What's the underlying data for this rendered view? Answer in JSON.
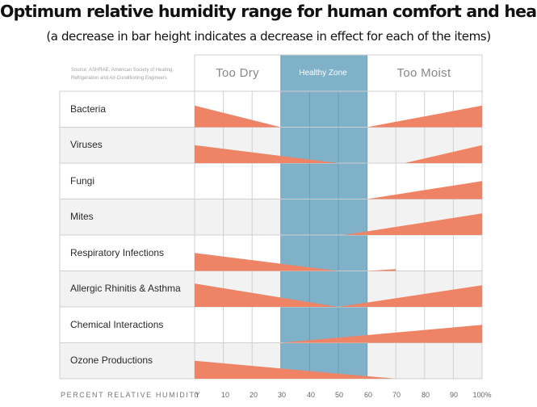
{
  "header": {
    "title": "Optimum relative humidity range for human comfort and health",
    "subtitle": "(a decrease in bar height indicates a decrease in effect for each of the items)"
  },
  "source": "Source: ASHRAE, American Society of Heating, Refrigeration and Air-Conditioning Engineers",
  "colors": {
    "bar": "#ee8366",
    "healthy_zone": "#7fb1c8",
    "row_alt": "#f2f2f2",
    "grid": "#cfcfcf"
  },
  "chart_data": {
    "type": "area",
    "xlabel": "PERCENT RELATIVE HUMIDITY",
    "xlim": [
      0,
      100
    ],
    "x_ticks": [
      "0",
      "10",
      "20",
      "30",
      "40",
      "50",
      "60",
      "70",
      "80",
      "90",
      "100%"
    ],
    "zones": [
      {
        "label": "Too Dry",
        "from": 0,
        "to": 30
      },
      {
        "label": "Healthy Zone",
        "from": 30,
        "to": 60
      },
      {
        "label": "Too Moist",
        "from": 60,
        "to": 100
      }
    ],
    "effect_max": 1,
    "categories": [
      {
        "name": "Bacteria",
        "segments": [
          [
            [
              0,
              0.6
            ],
            [
              30,
              0
            ]
          ],
          [
            [
              60,
              0
            ],
            [
              100,
              0.6
            ]
          ]
        ]
      },
      {
        "name": "Viruses",
        "segments": [
          [
            [
              0,
              0.5
            ],
            [
              50,
              0
            ]
          ],
          [
            [
              73,
              0
            ],
            [
              100,
              0.5
            ]
          ]
        ]
      },
      {
        "name": "Fungi",
        "segments": [
          [
            [
              60,
              0
            ],
            [
              100,
              0.5
            ]
          ]
        ]
      },
      {
        "name": "Mites",
        "segments": [
          [
            [
              52,
              0
            ],
            [
              100,
              0.6
            ]
          ]
        ]
      },
      {
        "name": "Respiratory Infections",
        "segments": [
          [
            [
              0,
              0.5
            ],
            [
              50,
              0
            ]
          ],
          [
            [
              60,
              0
            ],
            [
              70,
              0.05
            ]
          ]
        ]
      },
      {
        "name": "Allergic Rhinitis & Asthma",
        "segments": [
          [
            [
              0,
              0.65
            ],
            [
              50,
              0
            ]
          ],
          [
            [
              50,
              0
            ],
            [
              100,
              0.6
            ]
          ]
        ]
      },
      {
        "name": "Chemical Interactions",
        "segments": [
          [
            [
              30,
              0
            ],
            [
              100,
              0.5
            ]
          ]
        ]
      },
      {
        "name": "Ozone Productions",
        "segments": [
          [
            [
              0,
              0.5
            ],
            [
              70,
              0
            ]
          ]
        ]
      }
    ]
  }
}
